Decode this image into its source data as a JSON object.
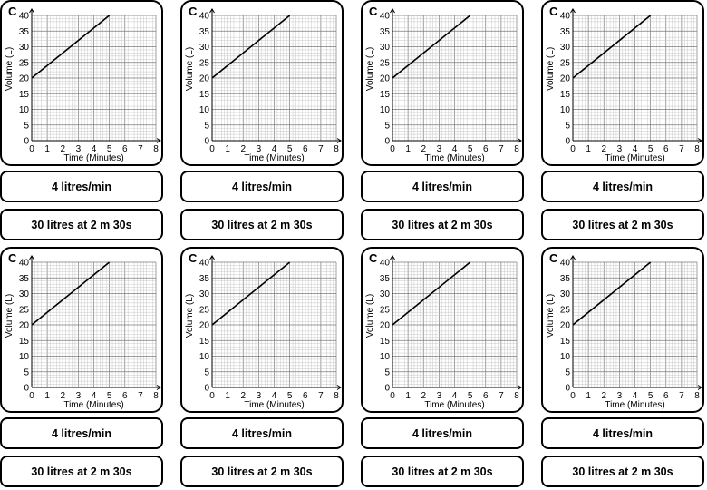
{
  "chart_data": {
    "type": "line",
    "card_letter": "C",
    "title": "",
    "xlabel": "Time (Minutes)",
    "ylabel": "Volume (L)",
    "xlim": [
      0,
      8
    ],
    "ylim": [
      0,
      40
    ],
    "x_ticks": [
      0,
      1,
      2,
      3,
      4,
      5,
      6,
      7,
      8
    ],
    "y_ticks": [
      0,
      5,
      10,
      15,
      20,
      25,
      30,
      35,
      40
    ],
    "grid": true,
    "series": [
      {
        "name": "volume",
        "x": [
          0,
          5
        ],
        "y": [
          20,
          40
        ]
      }
    ]
  },
  "cards": [
    {
      "rate_label": "4 litres/min",
      "value_label": "30 litres at 2 m 30s"
    },
    {
      "rate_label": "4 litres/min",
      "value_label": "30 litres at 2 m 30s"
    },
    {
      "rate_label": "4 litres/min",
      "value_label": "30 litres at 2 m 30s"
    },
    {
      "rate_label": "4 litres/min",
      "value_label": "30 litres at 2 m 30s"
    },
    {
      "rate_label": "4 litres/min",
      "value_label": "30 litres at 2 m 30s"
    },
    {
      "rate_label": "4 litres/min",
      "value_label": "30 litres at 2 m 30s"
    },
    {
      "rate_label": "4 litres/min",
      "value_label": "30 litres at 2 m 30s"
    },
    {
      "rate_label": "4 litres/min",
      "value_label": "30 litres at 2 m 30s"
    }
  ]
}
